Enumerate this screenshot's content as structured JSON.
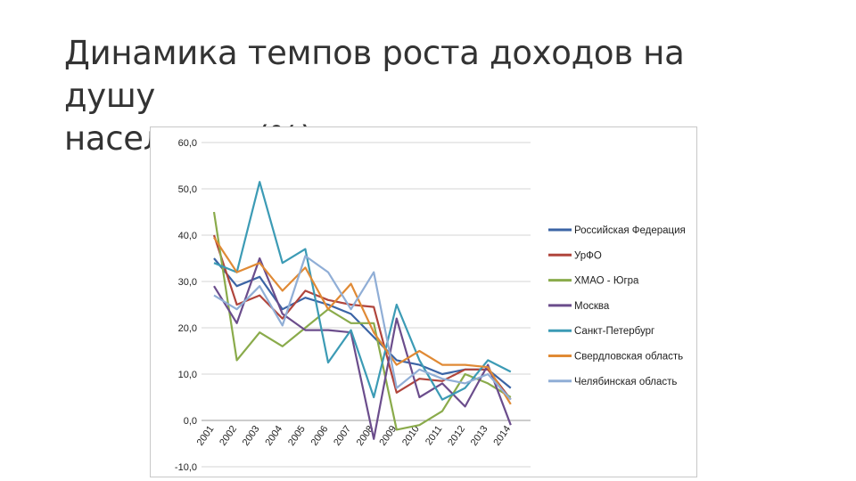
{
  "slide": {
    "title_line1": "Динамика темпов роста доходов на душу",
    "title_line2": "населения (%)"
  },
  "chart_data": {
    "type": "line",
    "title": "",
    "xlabel": "",
    "ylabel": "",
    "ylim": [
      -10,
      60
    ],
    "yticks": [
      -10,
      0,
      10,
      20,
      30,
      40,
      50,
      60
    ],
    "ytick_labels": [
      "-10,0",
      "0,0",
      "10,0",
      "20,0",
      "30,0",
      "40,0",
      "50,0",
      "60,0"
    ],
    "grid": true,
    "legend_position": "right",
    "categories": [
      "2001",
      "2002",
      "2003",
      "2004",
      "2005",
      "2006",
      "2007",
      "2008",
      "2009",
      "2010",
      "2011",
      "2012",
      "2013",
      "2014"
    ],
    "series": [
      {
        "name": "Российская Федерация",
        "color": "#3b64a5",
        "values": [
          35,
          29,
          31,
          24,
          26.5,
          25,
          23,
          18,
          13,
          12,
          10,
          11,
          11,
          7
        ]
      },
      {
        "name": "УрФО",
        "color": "#b0453c",
        "values": [
          40,
          25,
          27,
          22,
          28,
          26,
          25,
          24.5,
          6,
          9,
          8.5,
          11,
          11,
          4.5
        ]
      },
      {
        "name": "ХМАО - Югра",
        "color": "#8aab4b",
        "values": [
          45,
          13,
          19,
          16,
          20,
          24,
          21,
          21,
          -2,
          -1,
          2,
          10,
          8,
          5
        ]
      },
      {
        "name": "Москва",
        "color": "#6b4d8c",
        "values": [
          29,
          21,
          35,
          23,
          19.5,
          19.5,
          19,
          -4,
          22,
          5,
          8,
          3,
          12,
          -1
        ]
      },
      {
        "name": "Санкт-Петербург",
        "color": "#3c9bb5",
        "values": [
          34,
          32,
          51.5,
          34,
          37,
          12.5,
          19.5,
          5,
          25,
          13,
          4.5,
          7,
          13,
          10.5
        ]
      },
      {
        "name": "Свердловская область",
        "color": "#e08a35",
        "values": [
          39.5,
          32,
          34,
          28,
          33,
          24,
          29.5,
          19,
          12,
          15,
          12,
          12,
          11.5,
          3.5
        ]
      },
      {
        "name": "Челябинская область",
        "color": "#90aed6",
        "values": [
          27,
          24,
          29,
          20.5,
          35.5,
          32,
          24,
          32,
          7,
          11,
          9,
          8,
          10,
          4.5
        ]
      }
    ]
  }
}
